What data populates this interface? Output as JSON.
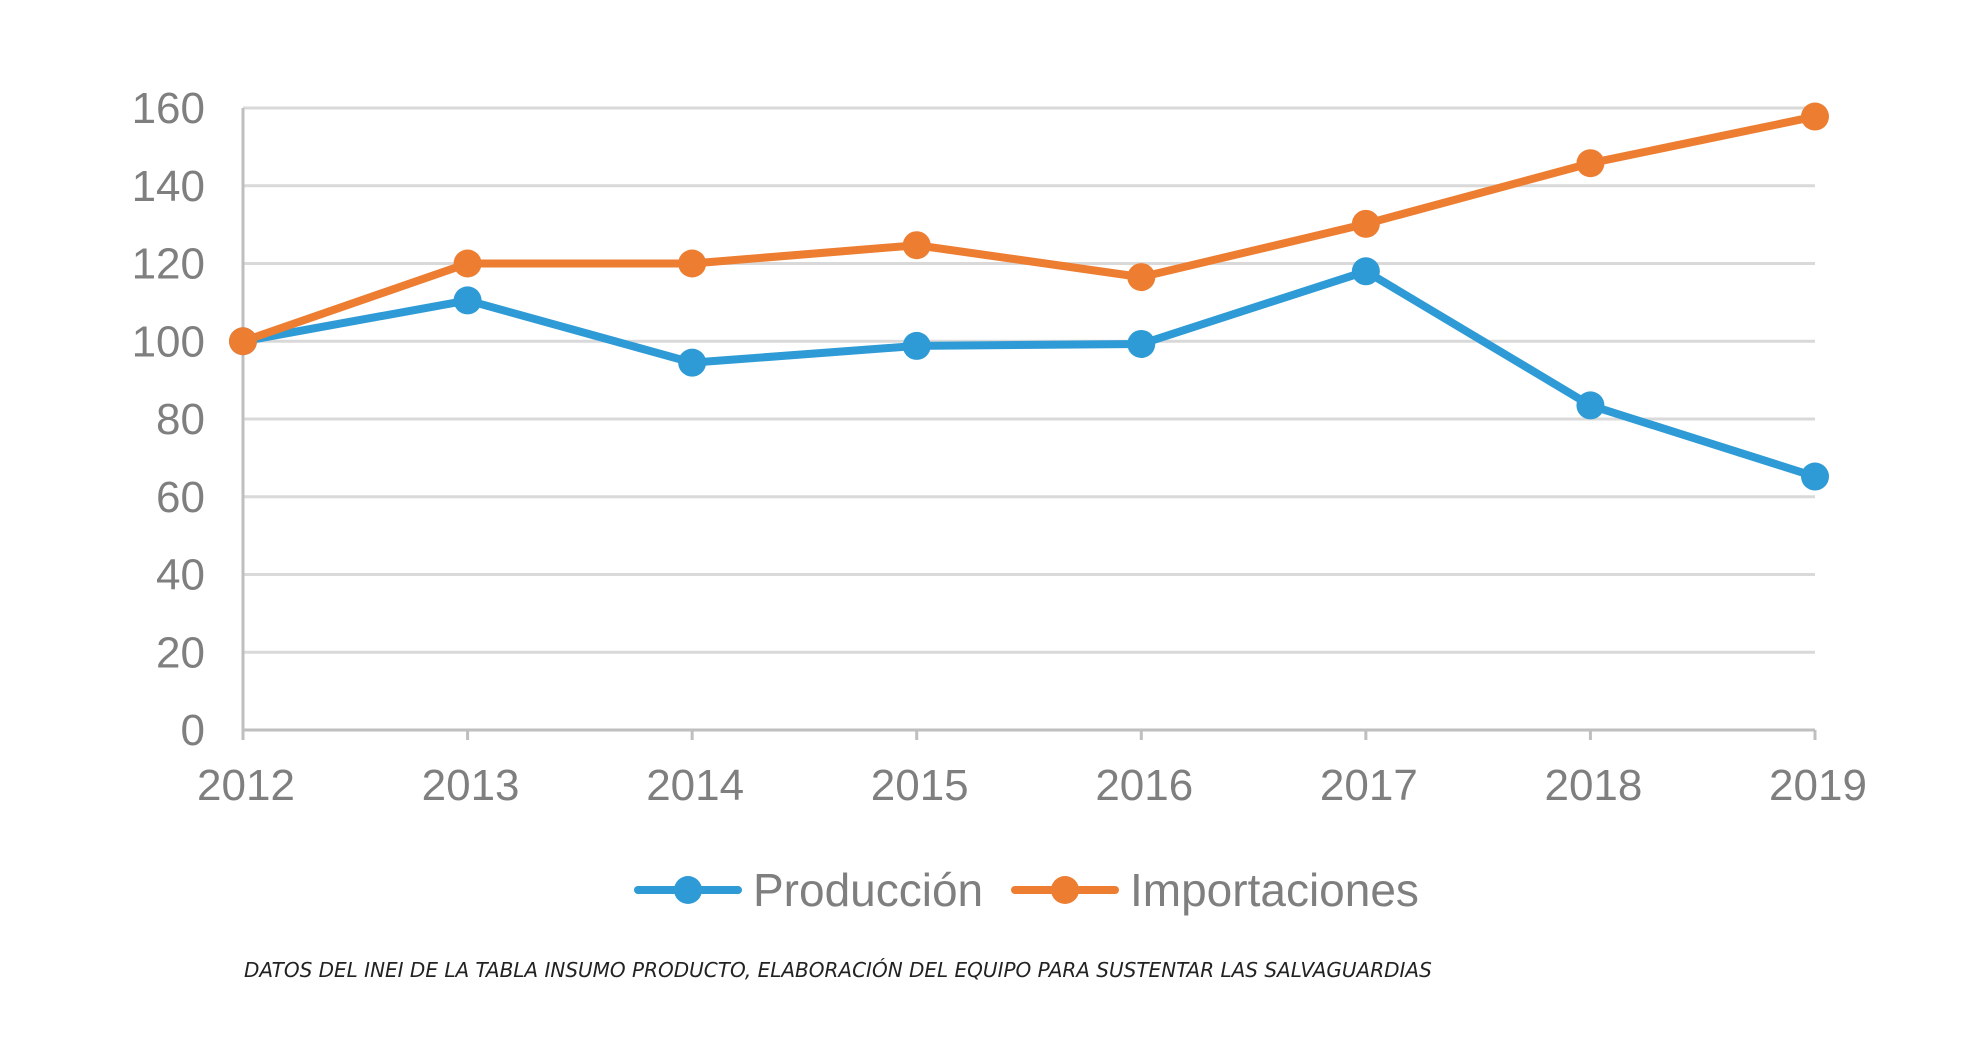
{
  "chart_data": {
    "type": "line",
    "categories": [
      "2012",
      "2013",
      "2014",
      "2015",
      "2016",
      "2017",
      "2018",
      "2019"
    ],
    "series": [
      {
        "name": "Producción",
        "color": "#2e9bd6",
        "values": [
          100,
          110.5,
          94.5,
          98.8,
          99.3,
          118,
          83.5,
          65.2
        ]
      },
      {
        "name": "Importaciones",
        "color": "#ed7d31",
        "values": [
          100,
          120,
          120,
          124.7,
          116.5,
          130.2,
          145.8,
          157.8
        ]
      }
    ],
    "ylim": [
      0,
      160
    ],
    "yticks": [
      "0",
      "20",
      "40",
      "60",
      "80",
      "100",
      "120",
      "140",
      "160"
    ],
    "grid": true,
    "legend_position": "bottom-center",
    "title": "",
    "xlabel": "",
    "ylabel": ""
  },
  "footnote": "DATOS DEL INEI DE LA TABLA INSUMO PRODUCTO, ELABORACIÓN DEL EQUIPO PARA SUSTENTAR LAS SALVAGUARDIAS",
  "colors": {
    "grid": "#d9d9d9",
    "axis": "#bfbfbf",
    "text": "#7f7f7f"
  }
}
